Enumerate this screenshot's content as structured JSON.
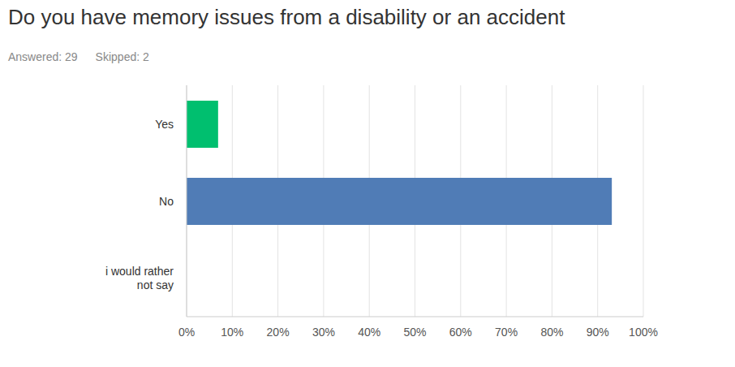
{
  "chart_data": {
    "type": "bar",
    "title": "Do you have memory issues from a disability or an accident",
    "subtitle": [
      "Answered: 29",
      "Skipped: 2"
    ],
    "categories": [
      "Yes",
      "No",
      "i would rather not say"
    ],
    "values": [
      6.9,
      93.1,
      0
    ],
    "colors": [
      "#00bf6f",
      "#507cb6",
      "#6bc8cd"
    ],
    "orientation": "horizontal",
    "xlim": [
      0,
      100
    ],
    "xticks": [
      {
        "value": 0,
        "label": "0%"
      },
      {
        "value": 10,
        "label": "10%"
      },
      {
        "value": 20,
        "label": "20%"
      },
      {
        "value": 30,
        "label": "30%"
      },
      {
        "value": 40,
        "label": "40%"
      },
      {
        "value": 50,
        "label": "50%"
      },
      {
        "value": 60,
        "label": "60%"
      },
      {
        "value": 70,
        "label": "70%"
      },
      {
        "value": 80,
        "label": "80%"
      },
      {
        "value": 90,
        "label": "90%"
      },
      {
        "value": 100,
        "label": "100%"
      }
    ],
    "grid": true
  }
}
